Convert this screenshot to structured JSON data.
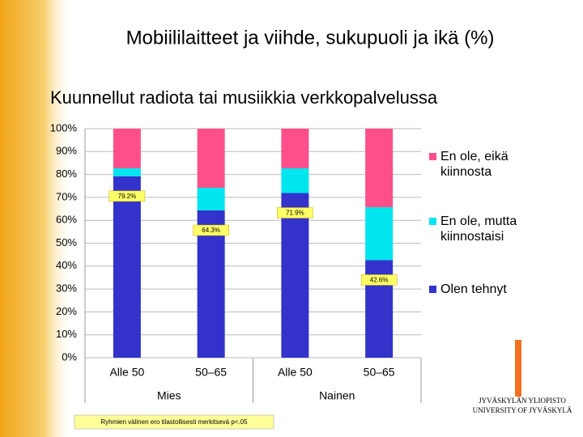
{
  "chart_data": {
    "type": "bar",
    "stacked": true,
    "title": "Mobiililaitteet ja viihde, sukupuoli ja ikä (%)",
    "subtitle": "Kuunnellut radiota tai musiikkia verkkopalvelussa",
    "categories": [
      "Alle 50",
      "50–65",
      "Alle 50",
      "50–65"
    ],
    "groups": [
      {
        "name": "Mies",
        "count": 2
      },
      {
        "name": "Nainen",
        "count": 2
      }
    ],
    "series": [
      {
        "name": "Olen tehnyt",
        "color": "#3333cc",
        "values": [
          79.2,
          64.3,
          71.9,
          42.6
        ],
        "value_labels": [
          "79.2%",
          "64.3%",
          "71.9%",
          "42.6%"
        ]
      },
      {
        "name": "En ole, mutta kiinnostaisi",
        "color": "#00e5ee",
        "values": [
          3.5,
          9.9,
          10.8,
          23.1
        ]
      },
      {
        "name": "En ole, eikä kiinnosta",
        "color": "#ff4f8b",
        "values": [
          17.3,
          25.8,
          17.3,
          34.3
        ]
      }
    ],
    "ylim": [
      0,
      100
    ],
    "yticks": [
      {
        "value": 0,
        "label": "0%"
      },
      {
        "value": 10,
        "label": "10%"
      },
      {
        "value": 20,
        "label": "20%"
      },
      {
        "value": 30,
        "label": "30%"
      },
      {
        "value": 40,
        "label": "40%"
      },
      {
        "value": 50,
        "label": "50%"
      },
      {
        "value": 60,
        "label": "60%"
      },
      {
        "value": 70,
        "label": "70%"
      },
      {
        "value": 80,
        "label": "80%"
      },
      {
        "value": 90,
        "label": "90%"
      },
      {
        "value": 100,
        "label": "100%"
      }
    ],
    "grid": true,
    "legend": "right",
    "footnote": "Ryhmien välinen ero tilastollisesti merkitsevä p<.05"
  },
  "logo": {
    "line1": "JYVÄSKYLÄN YLIOPISTO",
    "line2": "UNIVERSITY OF JYVÄSKYLÄ"
  }
}
